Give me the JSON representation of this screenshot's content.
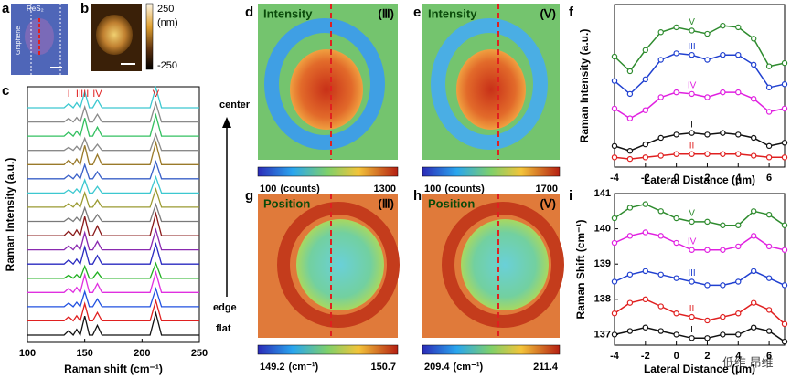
{
  "figure": {
    "panel_letters": [
      "a",
      "b",
      "c",
      "d",
      "e",
      "f",
      "g",
      "h",
      "i"
    ],
    "a": {
      "material": "ReS₂",
      "substrate": "Graphene"
    },
    "b": {
      "colorbar_ticks": [
        250,
        -250
      ],
      "unit": "(nm)"
    },
    "maps": [
      {
        "title": "Intensity",
        "peak": "(Ⅲ)",
        "min": 100,
        "unit": "(counts)",
        "max": 1300
      },
      {
        "title": "Intensity",
        "peak": "(Ⅴ)",
        "min": 100,
        "unit": "(counts)",
        "max": 1700
      },
      {
        "title": "Position",
        "peak": "(Ⅲ)",
        "min": 149.2,
        "unit": "(cm⁻¹)",
        "max": 150.7
      },
      {
        "title": "Position",
        "peak": "(Ⅴ)",
        "min": 209.4,
        "unit": "(cm⁻¹)",
        "max": 211.4
      }
    ],
    "spectrum_labels": [
      "center",
      "edge",
      "flat"
    ],
    "watermark": "低维 昂维"
  },
  "chart_data": [
    {
      "type": "line",
      "xlabel": "Raman shift (cm⁻¹)",
      "ylabel": "Raman Intensity (a.u.)",
      "peak_labels": [
        "I",
        "II",
        "III",
        "IV",
        "V"
      ],
      "xlim": [
        100,
        250
      ],
      "xticks": [
        100,
        150,
        200,
        250
      ],
      "x": [
        100,
        132,
        136,
        140,
        143,
        146,
        150,
        154,
        157,
        161,
        165,
        207,
        212,
        217,
        250
      ],
      "series": [
        {
          "color": "#3cc8d0",
          "values": [
            0,
            0,
            0.2,
            0,
            0.25,
            0,
            0.8,
            0,
            0,
            0.4,
            0,
            0,
            1.0,
            0,
            0
          ]
        },
        {
          "color": "#8a8a8a",
          "values": [
            0,
            0,
            0.18,
            0,
            0.22,
            0,
            0.75,
            0,
            0,
            0.38,
            0,
            0,
            0.95,
            0,
            0
          ]
        },
        {
          "color": "#33c060",
          "values": [
            0,
            0,
            0.2,
            0,
            0.25,
            0,
            0.9,
            0,
            0,
            0.45,
            0,
            0,
            1.05,
            0,
            0
          ]
        },
        {
          "color": "#8a8a8a",
          "values": [
            0,
            0,
            0.15,
            0,
            0.2,
            0,
            0.6,
            0,
            0,
            0.3,
            0,
            0,
            0.8,
            0,
            0
          ]
        },
        {
          "color": "#9a7a2a",
          "values": [
            0,
            0,
            0.22,
            0,
            0.28,
            0,
            0.95,
            0,
            0,
            0.5,
            0,
            0,
            1.1,
            0,
            0
          ]
        },
        {
          "color": "#3a60c8",
          "values": [
            0,
            0,
            0.18,
            0,
            0.22,
            0,
            0.7,
            0,
            0,
            0.35,
            0,
            0,
            0.85,
            0,
            0
          ]
        },
        {
          "color": "#3cc8d0",
          "values": [
            0,
            0,
            0.16,
            0,
            0.2,
            0,
            0.65,
            0,
            0,
            0.32,
            0,
            0,
            0.8,
            0,
            0
          ]
        },
        {
          "color": "#9a9a30",
          "values": [
            0,
            0,
            0.18,
            0,
            0.22,
            0,
            0.72,
            0,
            0,
            0.36,
            0,
            0,
            0.9,
            0,
            0
          ]
        },
        {
          "color": "#7a7a7a",
          "values": [
            0,
            0,
            0.17,
            0,
            0.2,
            0,
            0.68,
            0,
            0,
            0.34,
            0,
            0,
            0.85,
            0,
            0
          ]
        },
        {
          "color": "#8a1a1a",
          "values": [
            0,
            0,
            0.22,
            0,
            0.28,
            0,
            0.95,
            0,
            0,
            0.48,
            0,
            0,
            1.1,
            0,
            0
          ]
        },
        {
          "color": "#8a2ab0",
          "values": [
            0,
            0,
            0.2,
            0,
            0.24,
            0,
            0.85,
            0,
            0,
            0.42,
            0,
            0,
            1.0,
            0,
            0
          ]
        },
        {
          "color": "#2a2ac0",
          "values": [
            0,
            0,
            0.2,
            0,
            0.24,
            0,
            0.85,
            0,
            0,
            0.42,
            0,
            0,
            1.0,
            0,
            0
          ]
        },
        {
          "color": "#20b020",
          "values": [
            0,
            0,
            0.15,
            0,
            0.18,
            0,
            0.6,
            0,
            0,
            0.3,
            0,
            0,
            0.75,
            0,
            0
          ]
        },
        {
          "color": "#e030e0",
          "values": [
            0,
            0,
            0.2,
            0,
            0.25,
            0,
            0.88,
            0,
            0,
            0.44,
            0,
            0,
            1.0,
            0,
            0
          ]
        },
        {
          "color": "#2050e0",
          "values": [
            0,
            0,
            0.18,
            0,
            0.22,
            0,
            0.75,
            0,
            0,
            0.38,
            0,
            0,
            0.9,
            0,
            0
          ]
        },
        {
          "color": "#e02020",
          "values": [
            0,
            0,
            0.2,
            0,
            0.25,
            0,
            0.85,
            0,
            0,
            0.42,
            0,
            0,
            1.0,
            0,
            0
          ]
        },
        {
          "color": "#111111",
          "values": [
            0,
            0,
            0.22,
            0,
            0.28,
            0,
            0.95,
            0,
            0,
            0.48,
            0,
            0,
            1.1,
            0,
            0
          ]
        }
      ]
    },
    {
      "type": "line",
      "xlabel": "Lateral Distance (μm)",
      "ylabel": "Raman Intensity (a.u.)",
      "xlim": [
        -4,
        7
      ],
      "xticks": [
        -4,
        -2,
        0,
        2,
        4,
        6
      ],
      "ylim": [
        0,
        10
      ],
      "x": [
        -4,
        -3,
        -2,
        -1,
        0,
        1,
        2,
        3,
        4,
        5,
        6,
        7
      ],
      "series": [
        {
          "name": "V",
          "color": "#2e8b2e",
          "values": [
            6.8,
            5.9,
            7.2,
            8.3,
            8.6,
            8.4,
            8.2,
            8.7,
            8.6,
            7.9,
            6.2,
            6.4
          ]
        },
        {
          "name": "III",
          "color": "#2040d0",
          "values": [
            5.3,
            4.5,
            5.4,
            6.6,
            7.0,
            6.9,
            6.6,
            6.9,
            6.9,
            6.3,
            4.9,
            5.1
          ]
        },
        {
          "name": "IV",
          "color": "#e020e0",
          "values": [
            3.6,
            3.0,
            3.5,
            4.3,
            4.6,
            4.5,
            4.3,
            4.6,
            4.6,
            4.2,
            3.4,
            3.6
          ]
        },
        {
          "name": "I",
          "color": "#111111",
          "values": [
            1.3,
            1.0,
            1.4,
            1.8,
            2.0,
            2.1,
            2.0,
            2.1,
            2.0,
            1.8,
            1.3,
            1.5
          ]
        },
        {
          "name": "II",
          "color": "#e02020",
          "values": [
            0.6,
            0.5,
            0.6,
            0.7,
            0.8,
            0.8,
            0.8,
            0.8,
            0.8,
            0.7,
            0.6,
            0.6
          ]
        }
      ]
    },
    {
      "type": "line",
      "xlabel": "Lateral Distance (μm)",
      "ylabel": "Raman Shift (cm⁻¹)",
      "xlim": [
        -4,
        7
      ],
      "xticks": [
        -4,
        -2,
        0,
        2,
        4,
        6
      ],
      "ylim": [
        136.7,
        141
      ],
      "yticks": [
        137,
        138,
        139,
        140,
        141
      ],
      "x": [
        -4,
        -3,
        -2,
        -1,
        0,
        1,
        2,
        3,
        4,
        5,
        6,
        7
      ],
      "series": [
        {
          "name": "V",
          "color": "#2e8b2e",
          "values": [
            140.3,
            140.6,
            140.7,
            140.5,
            140.3,
            140.2,
            140.2,
            140.1,
            140.1,
            140.5,
            140.4,
            140.1
          ]
        },
        {
          "name": "IV",
          "color": "#e020e0",
          "values": [
            139.6,
            139.8,
            139.9,
            139.8,
            139.6,
            139.4,
            139.4,
            139.4,
            139.5,
            139.8,
            139.5,
            139.4
          ]
        },
        {
          "name": "III",
          "color": "#2040d0",
          "values": [
            138.5,
            138.7,
            138.8,
            138.7,
            138.6,
            138.5,
            138.4,
            138.4,
            138.5,
            138.8,
            138.6,
            138.4
          ]
        },
        {
          "name": "II",
          "color": "#e02020",
          "values": [
            137.6,
            137.9,
            138.0,
            137.8,
            137.6,
            137.5,
            137.4,
            137.5,
            137.6,
            137.9,
            137.7,
            137.3
          ]
        },
        {
          "name": "I",
          "color": "#111111",
          "values": [
            137.0,
            137.1,
            137.2,
            137.1,
            137.0,
            136.9,
            136.9,
            137.0,
            137.0,
            137.2,
            137.1,
            136.8
          ]
        }
      ]
    }
  ]
}
